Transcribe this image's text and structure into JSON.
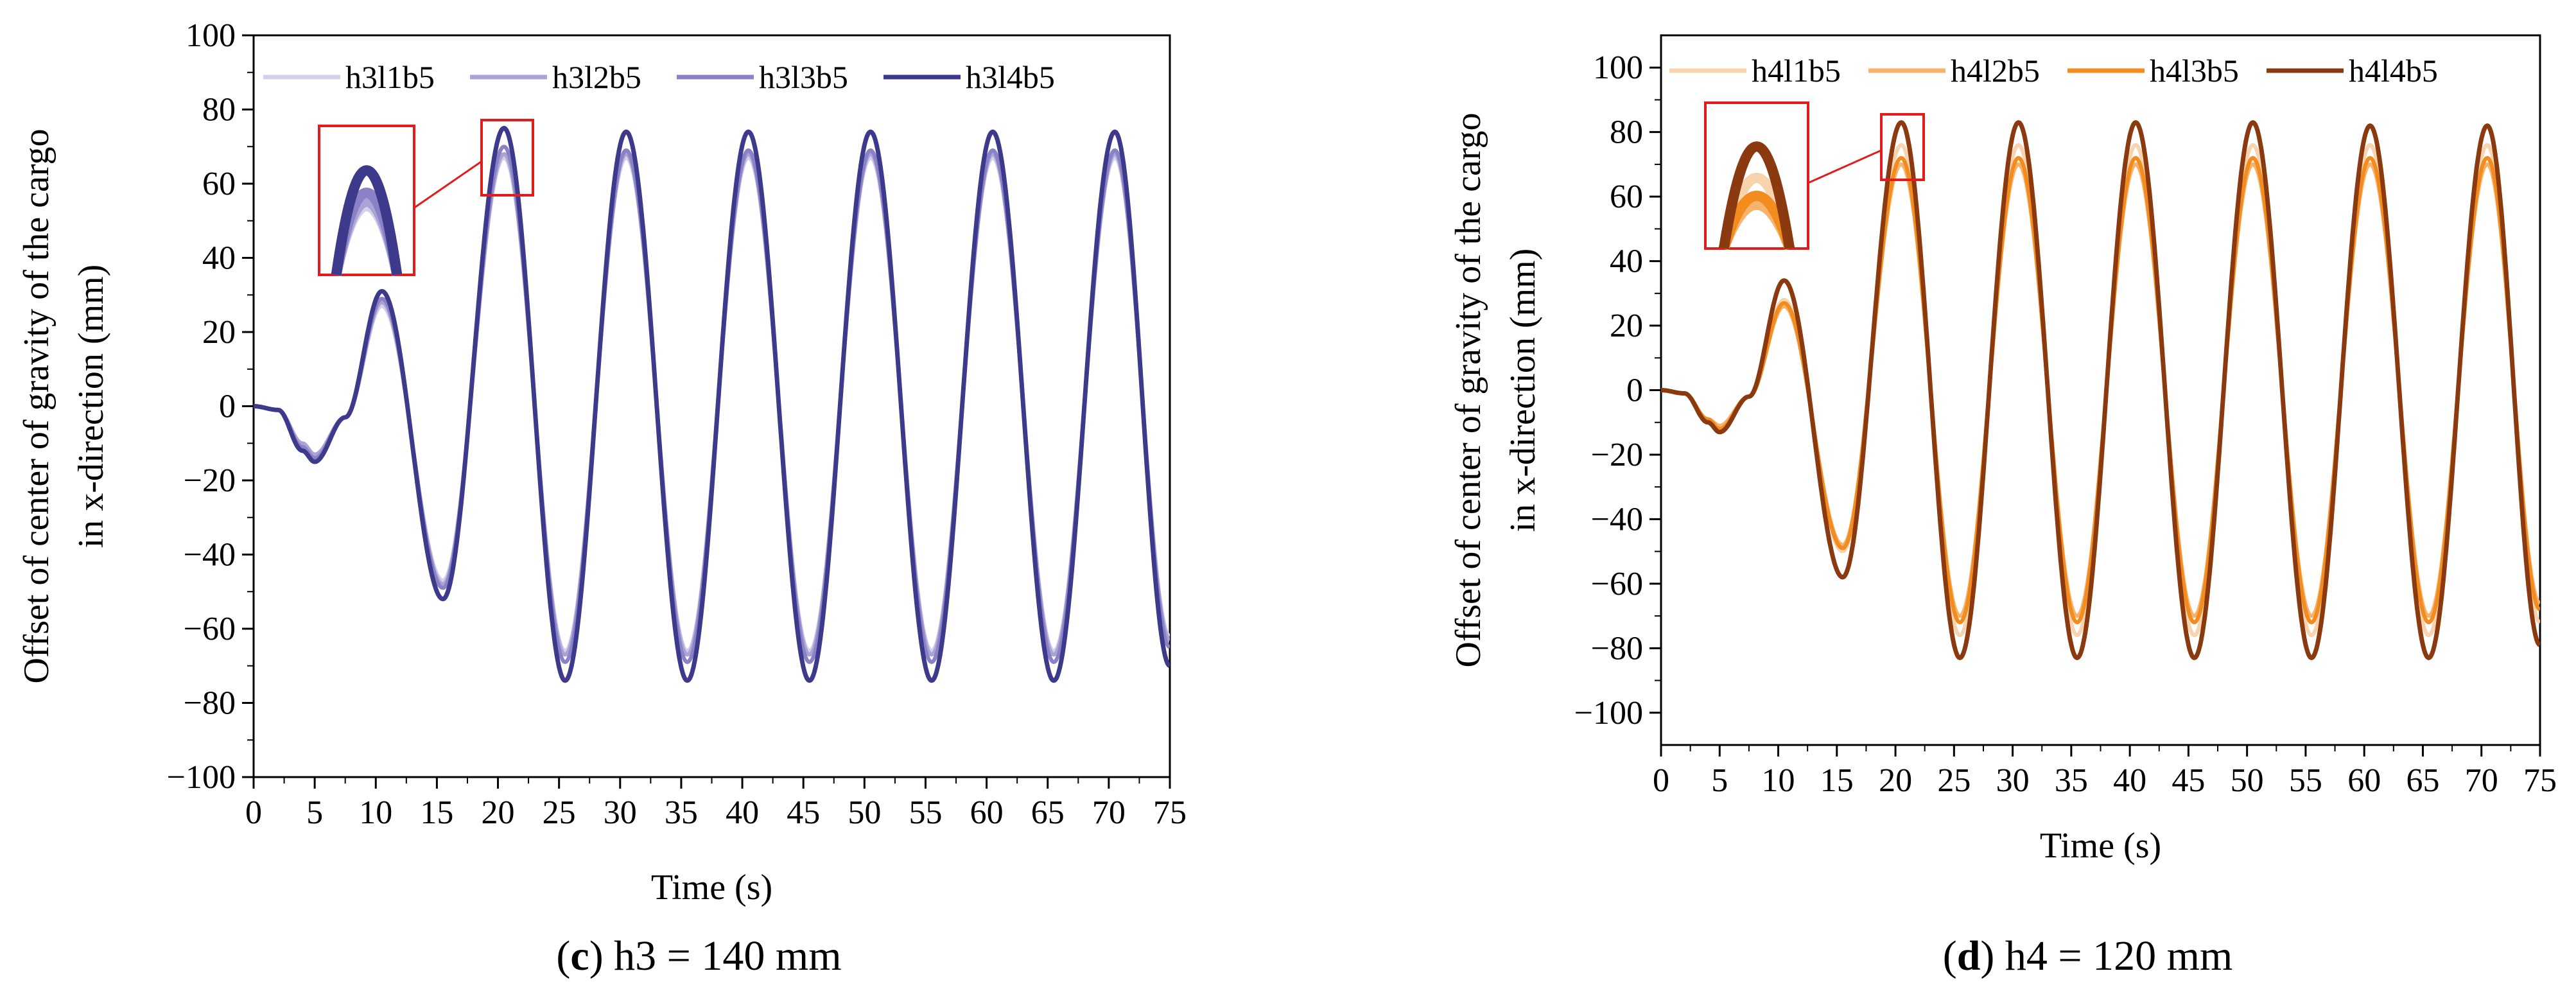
{
  "chart_data": [
    {
      "type": "line",
      "panel_letter": "c",
      "caption": "h3 = 140 mm",
      "xlabel": "Time (s)",
      "ylabel": [
        "Offset of center of gravity of the cargo",
        "in x-direction (mm)"
      ],
      "xlim": [
        0,
        75
      ],
      "ylim": [
        -100,
        100
      ],
      "x_ticks": [
        0,
        5,
        10,
        15,
        20,
        25,
        30,
        35,
        40,
        45,
        50,
        55,
        60,
        65,
        70,
        75
      ],
      "y_ticks": [
        -100,
        -80,
        -60,
        -40,
        -20,
        0,
        20,
        40,
        60,
        80,
        100
      ],
      "y_tick_labels": [
        "−100",
        "−80",
        "−60",
        "−40",
        "−20",
        "0",
        "20",
        "40",
        "60",
        "80",
        "100"
      ],
      "legend": "top",
      "inset_zoom": "peak near t = 20 s",
      "series": [
        {
          "name": "h3l1b5",
          "color": "#d4d0ea",
          "x": [
            0,
            2,
            4,
            5,
            7.5,
            10.5,
            15.5,
            20.5,
            25.5,
            30.5,
            35.5,
            40.5,
            45.5,
            50.5,
            55.5,
            60.5,
            65.5,
            70.5,
            75
          ],
          "values": [
            0,
            -1,
            -10,
            -13,
            -3,
            27,
            -47,
            67,
            -66,
            67,
            -66,
            67,
            -66,
            67,
            -66,
            67,
            -66,
            67,
            -62
          ]
        },
        {
          "name": "h3l2b5",
          "color": "#aaa4d6",
          "x": [
            0,
            2,
            4,
            5,
            7.5,
            10.5,
            15.5,
            20.5,
            25.5,
            30.5,
            35.5,
            40.5,
            45.5,
            50.5,
            55.5,
            60.5,
            65.5,
            70.5,
            75
          ],
          "values": [
            0,
            -1,
            -10,
            -13,
            -3,
            28,
            -48,
            68,
            -67,
            68,
            -67,
            68,
            -67,
            68,
            -67,
            68,
            -67,
            68,
            -63
          ]
        },
        {
          "name": "h3l3b5",
          "color": "#8a82c6",
          "x": [
            0,
            2,
            4,
            5,
            7.5,
            10.5,
            15.5,
            20.5,
            25.5,
            30.5,
            35.5,
            40.5,
            45.5,
            50.5,
            55.5,
            60.5,
            65.5,
            70.5,
            75
          ],
          "values": [
            0,
            -1,
            -11,
            -14,
            -3,
            29,
            -49,
            70,
            -69,
            69,
            -69,
            69,
            -69,
            69,
            -69,
            69,
            -69,
            69,
            -65
          ]
        },
        {
          "name": "h3l4b5",
          "color": "#3d3a8c",
          "x": [
            0,
            2,
            4,
            5,
            7.5,
            10.5,
            15.5,
            20.5,
            25.5,
            30.5,
            35.5,
            40.5,
            45.5,
            50.5,
            55.5,
            60.5,
            65.5,
            70.5,
            75
          ],
          "values": [
            0,
            -1,
            -12,
            -15,
            -3,
            31,
            -52,
            75,
            -74,
            74,
            -74,
            74,
            -74,
            74,
            -74,
            74,
            -74,
            74,
            -70
          ]
        }
      ]
    },
    {
      "type": "line",
      "panel_letter": "d",
      "caption": "h4 = 120 mm",
      "xlabel": "Time (s)",
      "ylabel": [
        "Offset of center of gravity of the cargo",
        "in x-direction (mm)"
      ],
      "xlim": [
        0,
        75
      ],
      "ylim": [
        -110,
        110
      ],
      "x_ticks": [
        0,
        5,
        10,
        15,
        20,
        25,
        30,
        35,
        40,
        45,
        50,
        55,
        60,
        65,
        70,
        75
      ],
      "y_ticks": [
        -100,
        -80,
        -60,
        -40,
        -20,
        0,
        20,
        40,
        60,
        80,
        100
      ],
      "y_tick_labels": [
        "−100",
        "−80",
        "−60",
        "−40",
        "−20",
        "0",
        "20",
        "40",
        "60",
        "80",
        "100"
      ],
      "legend": "top",
      "inset_zoom": "peak near t = 20 s",
      "series": [
        {
          "name": "h4l1b5",
          "color": "#f8d3ae",
          "x": [
            0,
            2,
            4,
            5,
            7.5,
            10.5,
            15.5,
            20.5,
            25.5,
            30.5,
            35.5,
            40.5,
            45.5,
            50.5,
            55.5,
            60.5,
            65.5,
            70.5,
            75
          ],
          "values": [
            0,
            -1,
            -9,
            -12,
            -2,
            28,
            -50,
            76,
            -76,
            76,
            -76,
            76,
            -76,
            76,
            -76,
            76,
            -76,
            76,
            -72
          ]
        },
        {
          "name": "h4l2b5",
          "color": "#f7b26b",
          "x": [
            0,
            2,
            4,
            5,
            7.5,
            10.5,
            15.5,
            20.5,
            25.5,
            30.5,
            35.5,
            40.5,
            45.5,
            50.5,
            55.5,
            60.5,
            65.5,
            70.5,
            75
          ],
          "values": [
            0,
            -1,
            -9,
            -11,
            -2,
            26,
            -48,
            70,
            -70,
            70,
            -70,
            70,
            -70,
            70,
            -70,
            70,
            -70,
            70,
            -66
          ]
        },
        {
          "name": "h4l3b5",
          "color": "#f28c1e",
          "x": [
            0,
            2,
            4,
            5,
            7.5,
            10.5,
            15.5,
            20.5,
            25.5,
            30.5,
            35.5,
            40.5,
            45.5,
            50.5,
            55.5,
            60.5,
            65.5,
            70.5,
            75
          ],
          "values": [
            0,
            -1,
            -9,
            -12,
            -2,
            27,
            -49,
            72,
            -72,
            72,
            -72,
            72,
            -72,
            72,
            -72,
            72,
            -72,
            72,
            -68
          ]
        },
        {
          "name": "h4l4b5",
          "color": "#8b3a0f",
          "x": [
            0,
            2,
            4,
            5,
            7.5,
            10.5,
            15.5,
            20.5,
            25.5,
            30.5,
            35.5,
            40.5,
            45.5,
            50.5,
            55.5,
            60.5,
            65.5,
            70.5,
            75
          ],
          "values": [
            0,
            -1,
            -10,
            -13,
            -2,
            34,
            -58,
            83,
            -83,
            83,
            -83,
            83,
            -83,
            83,
            -83,
            82,
            -83,
            82,
            -79
          ]
        }
      ]
    }
  ]
}
